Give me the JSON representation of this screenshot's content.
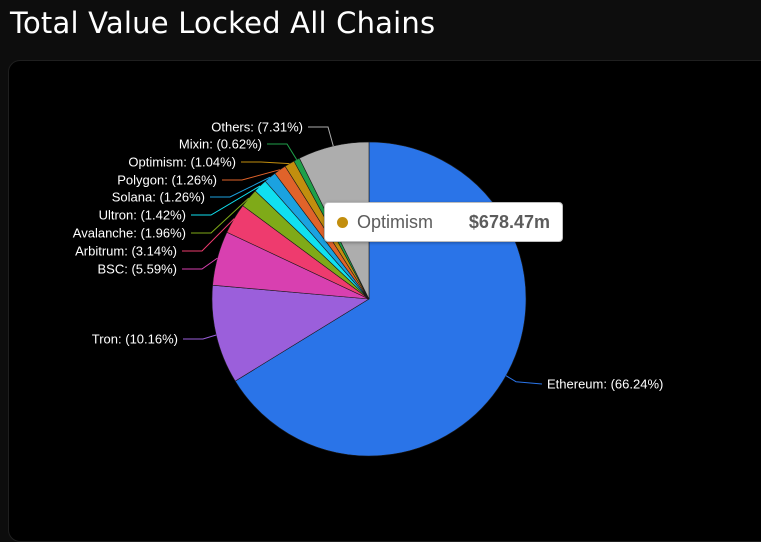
{
  "page": {
    "title": "Total Value Locked All Chains"
  },
  "tooltip": {
    "name": "Optimism",
    "value": "$678.47m",
    "color": "#c28e0e"
  },
  "chart_data": {
    "type": "pie",
    "title": "Total Value Locked All Chains",
    "slices": [
      {
        "name": "Ethereum",
        "percent": 66.24,
        "label": "Ethereum: (66.24%)",
        "color": "#2a74e8"
      },
      {
        "name": "Tron",
        "percent": 10.16,
        "label": "Tron: (10.16%)",
        "color": "#9b5fdb"
      },
      {
        "name": "BSC",
        "percent": 5.59,
        "label": "BSC: (5.59%)",
        "color": "#d840b0"
      },
      {
        "name": "Arbitrum",
        "percent": 3.14,
        "label": "Arbitrum: (3.14%)",
        "color": "#ee3b6e"
      },
      {
        "name": "Avalanche",
        "percent": 1.96,
        "label": "Avalanche: (1.96%)",
        "color": "#7faa18"
      },
      {
        "name": "Ultron",
        "percent": 1.42,
        "label": "Ultron: (1.42%)",
        "color": "#10e0f0"
      },
      {
        "name": "Solana",
        "percent": 1.26,
        "label": "Solana: (1.26%)",
        "color": "#1ba2e0"
      },
      {
        "name": "Polygon",
        "percent": 1.26,
        "label": "Polygon: (1.26%)",
        "color": "#e0632a"
      },
      {
        "name": "Optimism",
        "percent": 1.04,
        "label": "Optimism: (1.04%)",
        "color": "#c28e0e"
      },
      {
        "name": "Mixin",
        "percent": 0.62,
        "label": "Mixin: (0.62%)",
        "color": "#1fa04a"
      },
      {
        "name": "Others",
        "percent": 7.31,
        "label": "Others: (7.31%)",
        "color": "#adadad"
      }
    ]
  }
}
